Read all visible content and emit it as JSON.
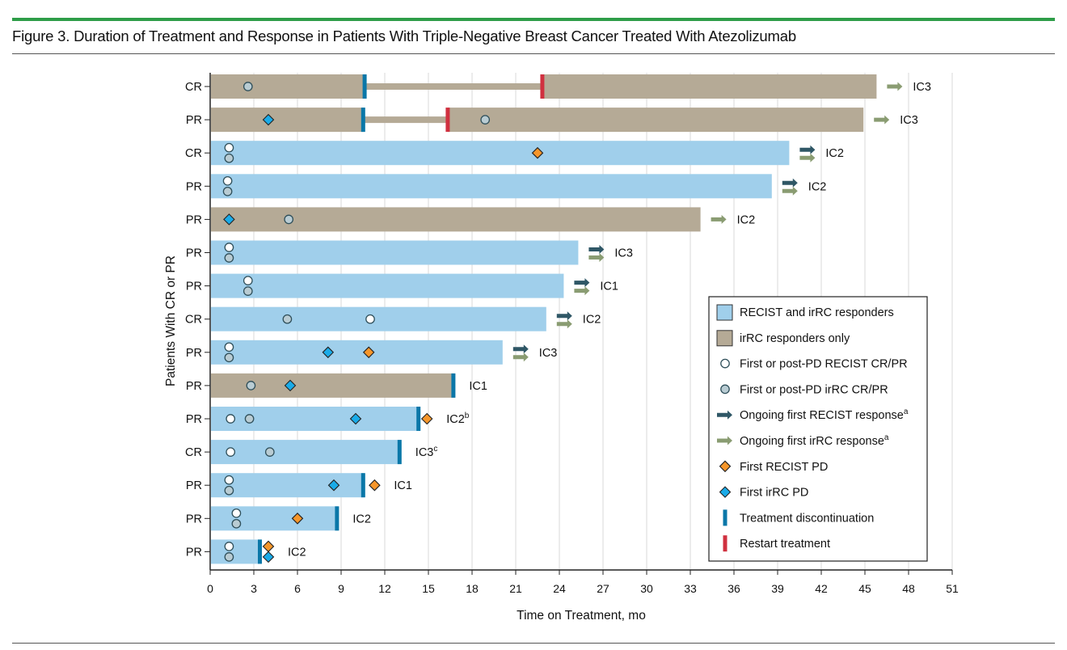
{
  "figure_title": "Figure 3. Duration of Treatment and Response in Patients With Triple-Negative Breast Cancer Treated With Atezolizumab",
  "colors": {
    "both": "#a0cfeb",
    "irrc": "#b5aa96",
    "discontinuation": "#0a77a8",
    "restart": "#d0303f",
    "recist_pd": "#f6962a",
    "irrc_pd": "#1aabe8",
    "recist_arrow": "#2f5766",
    "irrc_arrow": "#8a9c72",
    "irrc_circle": "#b9ccd3",
    "grid": "#d9d9d9",
    "accent": "#2e9d48"
  },
  "chart_data": {
    "type": "bar",
    "orientation": "horizontal-swimmer",
    "title": "Duration of Treatment and Response in Patients With Triple-Negative Breast Cancer Treated With Atezolizumab",
    "xlabel": "Time on Treatment, mo",
    "ylabel": "Patients With CR or PR",
    "xlim": [
      0,
      51
    ],
    "xticks": [
      "0",
      "3",
      "6",
      "9",
      "12",
      "15",
      "18",
      "21",
      "24",
      "27",
      "30",
      "33",
      "36",
      "39",
      "42",
      "45",
      "48",
      "51"
    ],
    "grid": true,
    "legend_position": "bottom-right",
    "legend": [
      {
        "key": "both",
        "label": "RECIST and irRC responders"
      },
      {
        "key": "irrc",
        "label": "irRC responders only"
      },
      {
        "key": "recist_cr",
        "label": "First or post-PD RECIST CR/PR"
      },
      {
        "key": "irrc_cr",
        "label": "First or post-PD irRC CR/PR"
      },
      {
        "key": "recist_arrow",
        "label": "Ongoing first RECIST response",
        "sup": "a"
      },
      {
        "key": "irrc_arrow",
        "label": "Ongoing first irRC response",
        "sup": "a"
      },
      {
        "key": "recist_pd",
        "label": "First RECIST PD"
      },
      {
        "key": "irrc_pd",
        "label": "First irRC PD"
      },
      {
        "key": "discontinuation",
        "label": "Treatment discontinuation"
      },
      {
        "key": "restart",
        "label": "Restart treatment"
      }
    ],
    "patients": [
      {
        "response": "CR",
        "type": "irrc",
        "segments": [
          [
            0,
            10.7
          ],
          [
            22.8,
            45.8
          ]
        ],
        "gap": [
          10.7,
          22.8
        ],
        "discontinuation": [
          10.7
        ],
        "restart": 22.8,
        "markers": [
          {
            "k": "irrc_cr",
            "m": 2.6,
            "p": "c"
          }
        ],
        "arrows": [
          "irrc"
        ],
        "ic": "IC3",
        "sup": ""
      },
      {
        "response": "PR",
        "type": "irrc",
        "segments": [
          [
            0,
            10.6
          ],
          [
            16.3,
            44.9
          ]
        ],
        "gap": [
          10.6,
          16.3
        ],
        "discontinuation": [
          10.6
        ],
        "restart": 16.3,
        "markers": [
          {
            "k": "irrc_pd",
            "m": 4.0,
            "p": "c"
          },
          {
            "k": "irrc_cr",
            "m": 18.9,
            "p": "c"
          }
        ],
        "arrows": [
          "irrc"
        ],
        "ic": "IC3",
        "sup": ""
      },
      {
        "response": "CR",
        "type": "both",
        "segments": [
          [
            0,
            39.8
          ]
        ],
        "discontinuation": [],
        "markers": [
          {
            "k": "recist_cr",
            "m": 1.3,
            "p": "t"
          },
          {
            "k": "irrc_cr",
            "m": 1.3,
            "p": "b"
          },
          {
            "k": "recist_pd",
            "m": 22.5,
            "p": "c"
          }
        ],
        "arrows": [
          "recist",
          "irrc"
        ],
        "ic": "IC2",
        "sup": ""
      },
      {
        "response": "PR",
        "type": "both",
        "segments": [
          [
            0,
            38.6
          ]
        ],
        "discontinuation": [],
        "markers": [
          {
            "k": "recist_cr",
            "m": 1.2,
            "p": "t"
          },
          {
            "k": "irrc_cr",
            "m": 1.2,
            "p": "b"
          }
        ],
        "arrows": [
          "recist",
          "irrc"
        ],
        "ic": "IC2",
        "sup": ""
      },
      {
        "response": "PR",
        "type": "irrc",
        "segments": [
          [
            0,
            33.7
          ]
        ],
        "discontinuation": [],
        "markers": [
          {
            "k": "irrc_pd",
            "m": 1.3,
            "p": "c"
          },
          {
            "k": "irrc_cr",
            "m": 5.4,
            "p": "c"
          }
        ],
        "arrows": [
          "irrc"
        ],
        "ic": "IC2",
        "sup": ""
      },
      {
        "response": "PR",
        "type": "both",
        "segments": [
          [
            0,
            25.3
          ]
        ],
        "discontinuation": [],
        "markers": [
          {
            "k": "recist_cr",
            "m": 1.3,
            "p": "t"
          },
          {
            "k": "irrc_cr",
            "m": 1.3,
            "p": "b"
          }
        ],
        "arrows": [
          "recist",
          "irrc"
        ],
        "ic": "IC3",
        "sup": ""
      },
      {
        "response": "PR",
        "type": "both",
        "segments": [
          [
            0,
            24.3
          ]
        ],
        "discontinuation": [],
        "markers": [
          {
            "k": "recist_cr",
            "m": 2.6,
            "p": "t"
          },
          {
            "k": "irrc_cr",
            "m": 2.6,
            "p": "b"
          }
        ],
        "arrows": [
          "recist",
          "irrc"
        ],
        "ic": "IC1",
        "sup": ""
      },
      {
        "response": "CR",
        "type": "both",
        "segments": [
          [
            0,
            23.1
          ]
        ],
        "discontinuation": [],
        "markers": [
          {
            "k": "irrc_cr",
            "m": 5.3,
            "p": "c"
          },
          {
            "k": "recist_cr",
            "m": 11.0,
            "p": "c"
          }
        ],
        "arrows": [
          "recist",
          "irrc"
        ],
        "ic": "IC2",
        "sup": ""
      },
      {
        "response": "PR",
        "type": "both",
        "segments": [
          [
            0,
            20.1
          ]
        ],
        "discontinuation": [],
        "markers": [
          {
            "k": "recist_cr",
            "m": 1.3,
            "p": "t"
          },
          {
            "k": "irrc_cr",
            "m": 1.3,
            "p": "b"
          },
          {
            "k": "irrc_pd",
            "m": 8.1,
            "p": "c"
          },
          {
            "k": "recist_pd",
            "m": 10.9,
            "p": "c"
          }
        ],
        "arrows": [
          "recist",
          "irrc"
        ],
        "ic": "IC3",
        "sup": ""
      },
      {
        "response": "PR",
        "type": "irrc",
        "segments": [
          [
            0,
            16.8
          ]
        ],
        "discontinuation": [
          16.8
        ],
        "markers": [
          {
            "k": "irrc_cr",
            "m": 2.8,
            "p": "c"
          },
          {
            "k": "irrc_pd",
            "m": 5.5,
            "p": "c"
          }
        ],
        "arrows": [],
        "ic": "IC1",
        "sup": ""
      },
      {
        "response": "PR",
        "type": "both",
        "segments": [
          [
            0,
            14.4
          ]
        ],
        "discontinuation": [
          14.4
        ],
        "markers": [
          {
            "k": "recist_cr",
            "m": 1.4,
            "p": "c"
          },
          {
            "k": "irrc_cr",
            "m": 2.7,
            "p": "c"
          },
          {
            "k": "irrc_pd",
            "m": 10.0,
            "p": "c"
          },
          {
            "k": "recist_pd",
            "m": 14.9,
            "p": "c"
          }
        ],
        "arrows": [],
        "ic": "IC2",
        "sup": "b"
      },
      {
        "response": "CR",
        "type": "both",
        "segments": [
          [
            0,
            13.1
          ]
        ],
        "discontinuation": [
          13.1
        ],
        "markers": [
          {
            "k": "recist_cr",
            "m": 1.4,
            "p": "c"
          },
          {
            "k": "irrc_cr",
            "m": 4.1,
            "p": "c"
          }
        ],
        "arrows": [],
        "ic": "IC3",
        "sup": "c"
      },
      {
        "response": "PR",
        "type": "both",
        "segments": [
          [
            0,
            10.6
          ]
        ],
        "discontinuation": [
          10.6
        ],
        "markers": [
          {
            "k": "recist_cr",
            "m": 1.3,
            "p": "t"
          },
          {
            "k": "irrc_cr",
            "m": 1.3,
            "p": "b"
          },
          {
            "k": "irrc_pd",
            "m": 8.5,
            "p": "c"
          },
          {
            "k": "recist_pd",
            "m": 11.3,
            "p": "c"
          }
        ],
        "arrows": [],
        "ic": "IC1",
        "sup": ""
      },
      {
        "response": "PR",
        "type": "both",
        "segments": [
          [
            0,
            8.8
          ]
        ],
        "discontinuation": [
          8.8
        ],
        "markers": [
          {
            "k": "recist_cr",
            "m": 1.8,
            "p": "t"
          },
          {
            "k": "irrc_cr",
            "m": 1.8,
            "p": "b"
          },
          {
            "k": "recist_pd",
            "m": 6.0,
            "p": "c"
          }
        ],
        "arrows": [],
        "ic": "IC2",
        "sup": ""
      },
      {
        "response": "PR",
        "type": "both",
        "segments": [
          [
            0,
            3.5
          ]
        ],
        "discontinuation": [
          3.5
        ],
        "markers": [
          {
            "k": "recist_cr",
            "m": 1.3,
            "p": "t"
          },
          {
            "k": "irrc_cr",
            "m": 1.3,
            "p": "b"
          },
          {
            "k": "recist_pd",
            "m": 4.0,
            "p": "t"
          },
          {
            "k": "irrc_pd",
            "m": 4.0,
            "p": "b"
          }
        ],
        "arrows": [],
        "ic": "IC2",
        "sup": ""
      }
    ]
  }
}
